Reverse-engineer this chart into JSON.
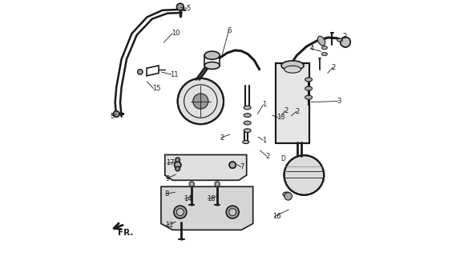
{
  "bg_color": "#ffffff",
  "line_color": "#1a1a1a",
  "label_color": "#1a1a1a",
  "pipe_color": "#333333",
  "part_fill": "#e8e8e8",
  "dark_fill": "#aaaaaa",
  "mid_fill": "#cccccc"
}
